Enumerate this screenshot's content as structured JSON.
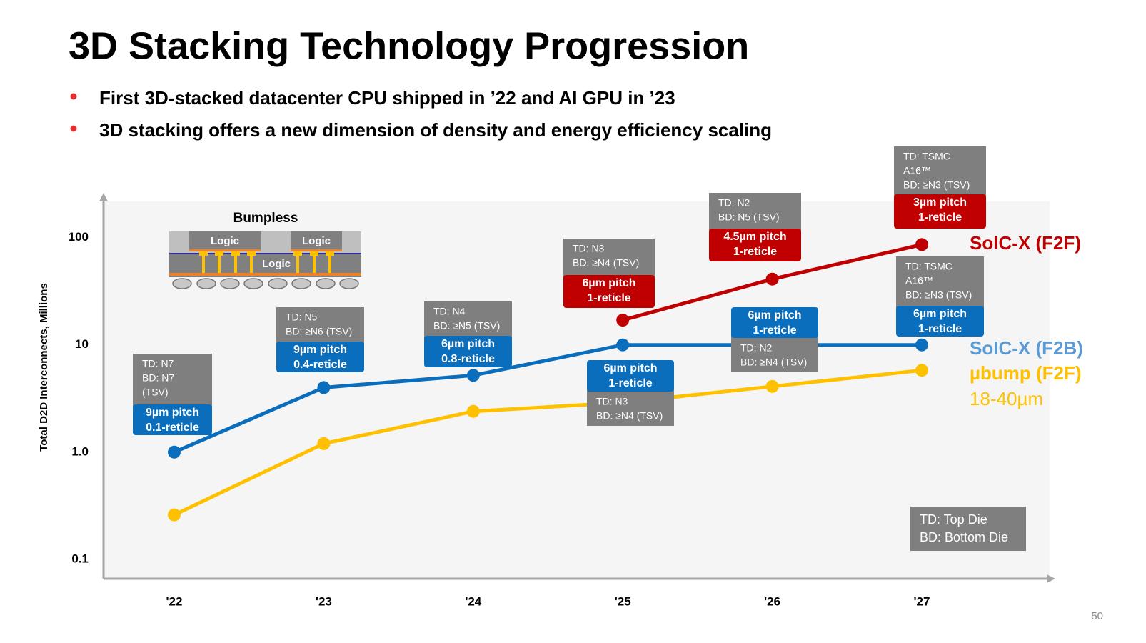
{
  "slide": {
    "title": "3D Stacking Technology Progression",
    "bullets": [
      "First 3D-stacked datacenter CPU shipped in ’22 and AI GPU in ’23",
      "3D stacking offers a new dimension of density and energy efficiency scaling"
    ],
    "page_number": "50"
  },
  "chart_data": {
    "type": "line",
    "y_scale": "log",
    "grid": false,
    "ylabel": "Total D2D Interconnects, Millions",
    "categories": [
      "'22",
      "'23",
      "'24",
      "'25",
      "'26",
      "'27"
    ],
    "ylim": [
      0.066,
      224
    ],
    "yticks": [
      0.1,
      {
        "value": 1,
        "label": "1.0"
      },
      10,
      100
    ],
    "series": [
      {
        "name": "SoIC-X (F2F)",
        "color": "#c00000",
        "label_color": "#c00000",
        "values": [
          null,
          null,
          null,
          17,
          41,
          86
        ]
      },
      {
        "name": "SoIC-X (F2B)",
        "color": "#0a6ebd",
        "label_color": "#5b9bd5",
        "values": [
          1,
          4,
          5.2,
          10,
          10,
          10
        ]
      },
      {
        "name": "µbump (F2F)",
        "color": "#ffc000",
        "label_color": "#ffc000",
        "note": "18-40µm",
        "values": [
          0.26,
          1.2,
          2.4,
          2.9,
          4.1,
          5.8
        ]
      }
    ],
    "inset": {
      "title": "Bumpless",
      "labels": [
        "Logic",
        "Logic",
        "Logic"
      ]
    },
    "annotations": [
      {
        "details": [
          "TD: N7",
          "BD: N7",
          "(TSV)"
        ],
        "pitch": [
          "9µm pitch",
          "0.1-reticle"
        ]
      },
      {
        "details": [
          "TD: N5",
          "BD: ≥N6 (TSV)"
        ],
        "pitch": [
          "9µm pitch",
          "0.4-reticle"
        ]
      },
      {
        "details": [
          "TD: N4",
          "BD: ≥N5 (TSV)"
        ],
        "pitch": [
          "6µm pitch",
          "0.8-reticle"
        ]
      },
      {
        "details": [
          "TD: N3",
          "BD: ≥N4 (TSV)"
        ],
        "pitch": [
          "6µm pitch",
          "1-reticle"
        ]
      },
      {
        "details": [
          "TD: N2",
          "BD: N5 (TSV)"
        ],
        "pitch": [
          "4.5µm pitch",
          "1-reticle"
        ]
      },
      {
        "details": [
          "TD: TSMC",
          "A16™",
          "BD: ≥N3 (TSV)"
        ],
        "pitch": [
          "3µm pitch",
          "1-reticle"
        ]
      },
      {
        "details": [
          "TD: N3",
          "BD: ≥N4 (TSV)"
        ],
        "pitch": [
          "6µm pitch",
          "1-reticle"
        ]
      },
      {
        "details": [
          "TD: N2",
          "BD: ≥N4 (TSV)"
        ],
        "pitch": [
          "6µm pitch",
          "1-reticle"
        ]
      },
      {
        "details": [
          "TD: TSMC",
          "A16™",
          "BD: ≥N3 (TSV)"
        ],
        "pitch": [
          "6µm pitch",
          "1-reticle"
        ]
      }
    ],
    "key": [
      "TD: Top Die",
      "BD: Bottom Die"
    ]
  }
}
